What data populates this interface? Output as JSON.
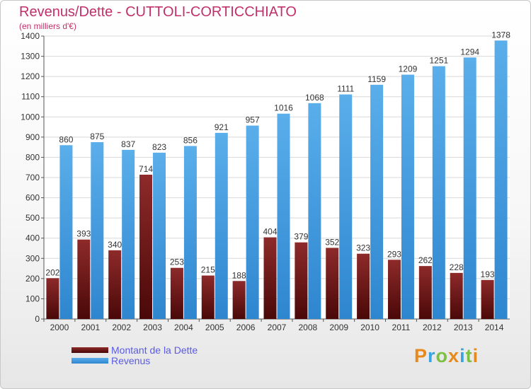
{
  "chart_data": {
    "type": "bar",
    "title": "Revenus/Dette - CUTTOLI-CORTICCHIATO",
    "subtitle": "(en milliers d'€)",
    "categories": [
      "2000",
      "2001",
      "2002",
      "2003",
      "2004",
      "2005",
      "2006",
      "2007",
      "2008",
      "2009",
      "2010",
      "2011",
      "2012",
      "2013",
      "2014"
    ],
    "series": [
      {
        "name": "Montant de la Dette",
        "color": "#7a1a1a",
        "values": [
          202,
          393,
          340,
          714,
          253,
          215,
          188,
          404,
          379,
          352,
          323,
          293,
          262,
          228,
          193
        ]
      },
      {
        "name": "Revenus",
        "color": "#3d99dd",
        "values": [
          860,
          875,
          837,
          823,
          856,
          921,
          957,
          1016,
          1068,
          1111,
          1159,
          1209,
          1251,
          1294,
          1378
        ]
      }
    ],
    "ylim": [
      0,
      1400
    ],
    "yticks": [
      0,
      100,
      200,
      300,
      400,
      500,
      600,
      700,
      800,
      900,
      1000,
      1100,
      1200,
      1300,
      1400
    ],
    "grid": true,
    "legend_position": "bottom-left"
  },
  "logo": {
    "text": "Proxiti"
  }
}
